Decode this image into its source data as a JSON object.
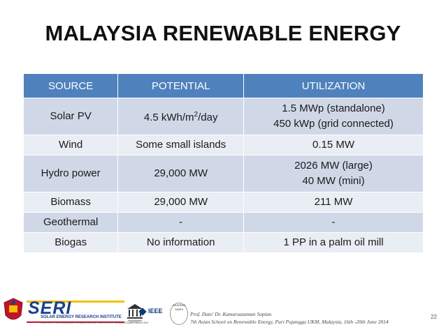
{
  "title": "MALAYSIA RENEWABLE ENERGY",
  "table": {
    "headers": [
      "SOURCE",
      "POTENTIAL",
      "UTILIZATION"
    ],
    "rows": [
      {
        "source": "Solar PV",
        "potential": "4.5 kWh/m2/day",
        "potential_main": "4.5 kWh/m",
        "potential_sup": "2",
        "potential_tail": "/day",
        "utilization": [
          "1.5 MWp (standalone)",
          "450 kWp (grid connected)"
        ]
      },
      {
        "source": "Wind",
        "potential": "Some small islands",
        "utilization": [
          "0.15 MW"
        ]
      },
      {
        "source": "Hydro power",
        "potential": "29,000 MW",
        "utilization": [
          "2026 MW (large)",
          "40 MW (mini)"
        ]
      },
      {
        "source": "Biomass",
        "potential": "29,000 MW",
        "utilization": [
          "211 MW"
        ]
      },
      {
        "source": "Geothermal",
        "potential": "-",
        "utilization": [
          "-"
        ]
      },
      {
        "source": "Biogas",
        "potential": "No information",
        "utilization": [
          "1 PP in a palm oil mill"
        ]
      }
    ]
  },
  "footer": {
    "seri_logo_text": "SERI",
    "seri_name": "SOLAR ENERGY RESEARCH INSTITUTE",
    "seri_tagline": "INSTITUT PENYELIDIKAN TENAGA SURIA · UNIVERSITI KEBANGSAAN MALAYSIA",
    "ieee_text": "IEEE",
    "akademi_text": "AKADEMI SAINS",
    "credit_line1": "Prof. Dato' Dr. Kamaruzzaman Sopian",
    "credit_line2": "7th Asian School on Renewable Energy, Puri Pujangga UKM, Malaysia, 16th -20th June 2014",
    "page_number": "22"
  },
  "colors": {
    "header_bg": "#4f81bd",
    "row_odd": "#d0d8e8",
    "row_even": "#e9edf4"
  }
}
